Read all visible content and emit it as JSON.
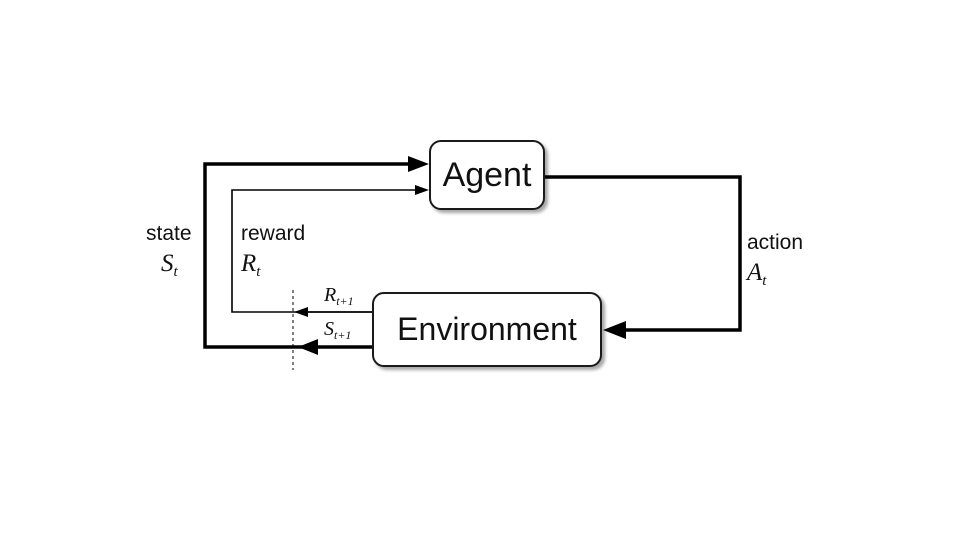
{
  "nodes": {
    "agent": "Agent",
    "environment": "Environment"
  },
  "labels": {
    "state": "state",
    "state_symbol": "S",
    "state_sub": "t",
    "reward": "reward",
    "reward_symbol": "R",
    "reward_sub": "t",
    "action": "action",
    "action_symbol": "A",
    "action_sub": "t",
    "next_reward_symbol": "R",
    "next_reward_sub": "t+1",
    "next_state_symbol": "S",
    "next_state_sub": "t+1"
  },
  "colors": {
    "line": "#000000",
    "box_border": "#1a1a1a"
  }
}
